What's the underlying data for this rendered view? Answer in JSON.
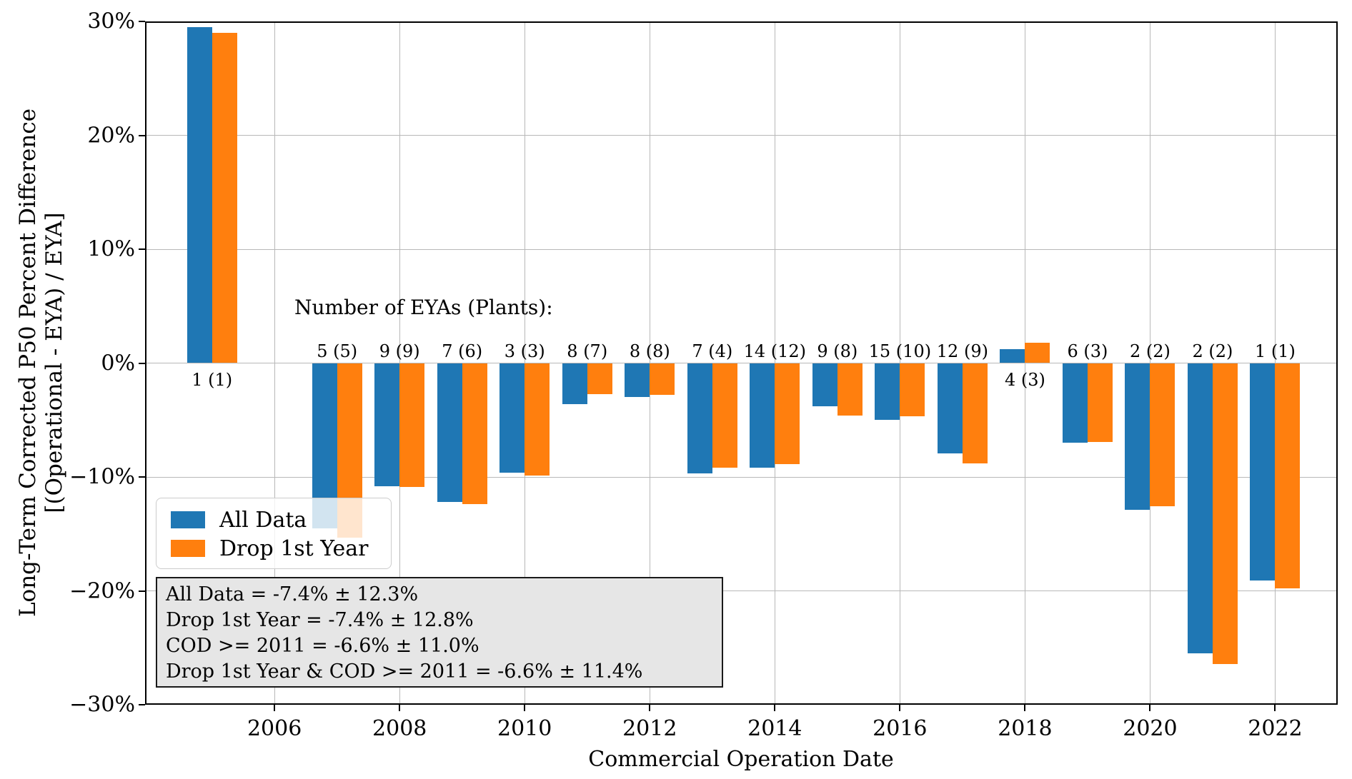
{
  "chart_data": {
    "type": "bar",
    "xlabel": "Commercial Operation Date",
    "ylabel_line1": "Long-Term Corrected P50 Percent Difference",
    "ylabel_line2": "[(Operational - EYA) / EYA]",
    "count_heading": "Number of EYAs (Plants):",
    "xlim": [
      2003.93,
      2023.0
    ],
    "ylim": [
      -30,
      30
    ],
    "grid": true,
    "bar_width_years": 0.4,
    "series_names": [
      "All Data",
      "Drop 1st Year"
    ],
    "series_colors": [
      "#1f77b4",
      "#ff7f0e"
    ],
    "bars": [
      {
        "year": 2005,
        "all_data": 29.5,
        "drop_1st_year": 29.0,
        "count_label": "1 (1)",
        "label_placement": "below"
      },
      {
        "year": 2007,
        "all_data": -14.5,
        "drop_1st_year": -15.3,
        "count_label": "5 (5)",
        "label_placement": "above"
      },
      {
        "year": 2008,
        "all_data": -10.8,
        "drop_1st_year": -10.9,
        "count_label": "9 (9)",
        "label_placement": "above"
      },
      {
        "year": 2009,
        "all_data": -12.2,
        "drop_1st_year": -12.4,
        "count_label": "7 (6)",
        "label_placement": "above"
      },
      {
        "year": 2010,
        "all_data": -9.6,
        "drop_1st_year": -9.9,
        "count_label": "3 (3)",
        "label_placement": "above"
      },
      {
        "year": 2011,
        "all_data": -3.6,
        "drop_1st_year": -2.7,
        "count_label": "8 (7)",
        "label_placement": "above"
      },
      {
        "year": 2012,
        "all_data": -3.0,
        "drop_1st_year": -2.8,
        "count_label": "8 (8)",
        "label_placement": "above"
      },
      {
        "year": 2013,
        "all_data": -9.7,
        "drop_1st_year": -9.2,
        "count_label": "7 (4)",
        "label_placement": "above"
      },
      {
        "year": 2014,
        "all_data": -9.2,
        "drop_1st_year": -8.9,
        "count_label": "14 (12)",
        "label_placement": "above"
      },
      {
        "year": 2015,
        "all_data": -3.8,
        "drop_1st_year": -4.6,
        "count_label": "9 (8)",
        "label_placement": "above"
      },
      {
        "year": 2016,
        "all_data": -5.0,
        "drop_1st_year": -4.7,
        "count_label": "15 (10)",
        "label_placement": "above"
      },
      {
        "year": 2017,
        "all_data": -7.9,
        "drop_1st_year": -8.8,
        "count_label": "12 (9)",
        "label_placement": "above"
      },
      {
        "year": 2018,
        "all_data": 1.2,
        "drop_1st_year": 1.8,
        "count_label": "4 (3)",
        "label_placement": "below"
      },
      {
        "year": 2019,
        "all_data": -7.0,
        "drop_1st_year": -6.9,
        "count_label": "6 (3)",
        "label_placement": "above"
      },
      {
        "year": 2020,
        "all_data": -12.9,
        "drop_1st_year": -12.6,
        "count_label": "2 (2)",
        "label_placement": "above"
      },
      {
        "year": 2021,
        "all_data": -25.5,
        "drop_1st_year": -26.4,
        "count_label": "2 (2)",
        "label_placement": "above"
      },
      {
        "year": 2022,
        "all_data": -19.1,
        "drop_1st_year": -19.8,
        "count_label": "1 (1)",
        "label_placement": "above"
      }
    ],
    "x_ticks": [
      2006,
      2008,
      2010,
      2012,
      2014,
      2016,
      2018,
      2020,
      2022
    ],
    "y_ticks": [
      {
        "value": 30,
        "label": "30%"
      },
      {
        "value": 20,
        "label": "20%"
      },
      {
        "value": 10,
        "label": "10%"
      },
      {
        "value": 0,
        "label": "0%"
      },
      {
        "value": -10,
        "label": "−10%"
      },
      {
        "value": -20,
        "label": "−20%"
      },
      {
        "value": -30,
        "label": "−30%"
      }
    ]
  },
  "legend": {
    "items": [
      {
        "label": "All Data",
        "color": "#1f77b4"
      },
      {
        "label": "Drop 1st Year",
        "color": "#ff7f0e"
      }
    ]
  },
  "stats_box": {
    "lines": [
      "All Data = -7.4% ± 12.3%",
      "Drop 1st Year = -7.4% ± 12.8%",
      "COD >= 2011 = -6.6% ± 11.0%",
      "Drop 1st Year & COD >= 2011 = -6.6% ± 11.4%"
    ]
  }
}
